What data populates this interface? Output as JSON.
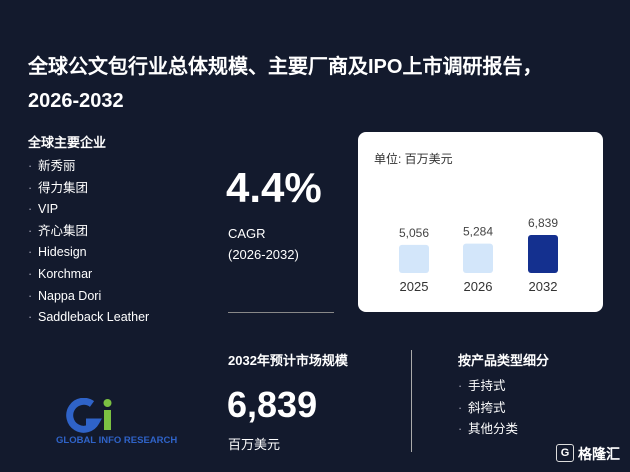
{
  "header": {
    "title": "全球公文包行业总体规模、主要厂商及IPO上市调研报告，2026-2032"
  },
  "companies": {
    "label": "全球主要企业",
    "items": [
      "新秀丽",
      "得力集团",
      "VIP",
      "齐心集团",
      "Hidesign",
      "Korchmar",
      "Nappa Dori",
      "Saddleback Leather"
    ]
  },
  "cagr": {
    "value": "4.4%",
    "label": "CAGR",
    "period": "(2026-2032)"
  },
  "chart_data": {
    "type": "bar",
    "subtitle": "单位: 百万美元",
    "categories": [
      "2025",
      "2026",
      "2032"
    ],
    "values": [
      5056,
      5284,
      6839
    ],
    "value_labels": [
      "5,056",
      "5,284",
      "6,839"
    ],
    "colors": [
      "#d3e6fa",
      "#d3e6fa",
      "#14308f"
    ]
  },
  "market": {
    "label": "2032年预计市场规模",
    "value": "6,839",
    "unit": "百万美元"
  },
  "segments": {
    "label": "按产品类型细分",
    "items": [
      "手持式",
      "斜挎式",
      "其他分类"
    ]
  },
  "logo": {
    "text": "GLOBAL INFO RESEARCH"
  },
  "watermark": {
    "text": "格隆汇"
  }
}
